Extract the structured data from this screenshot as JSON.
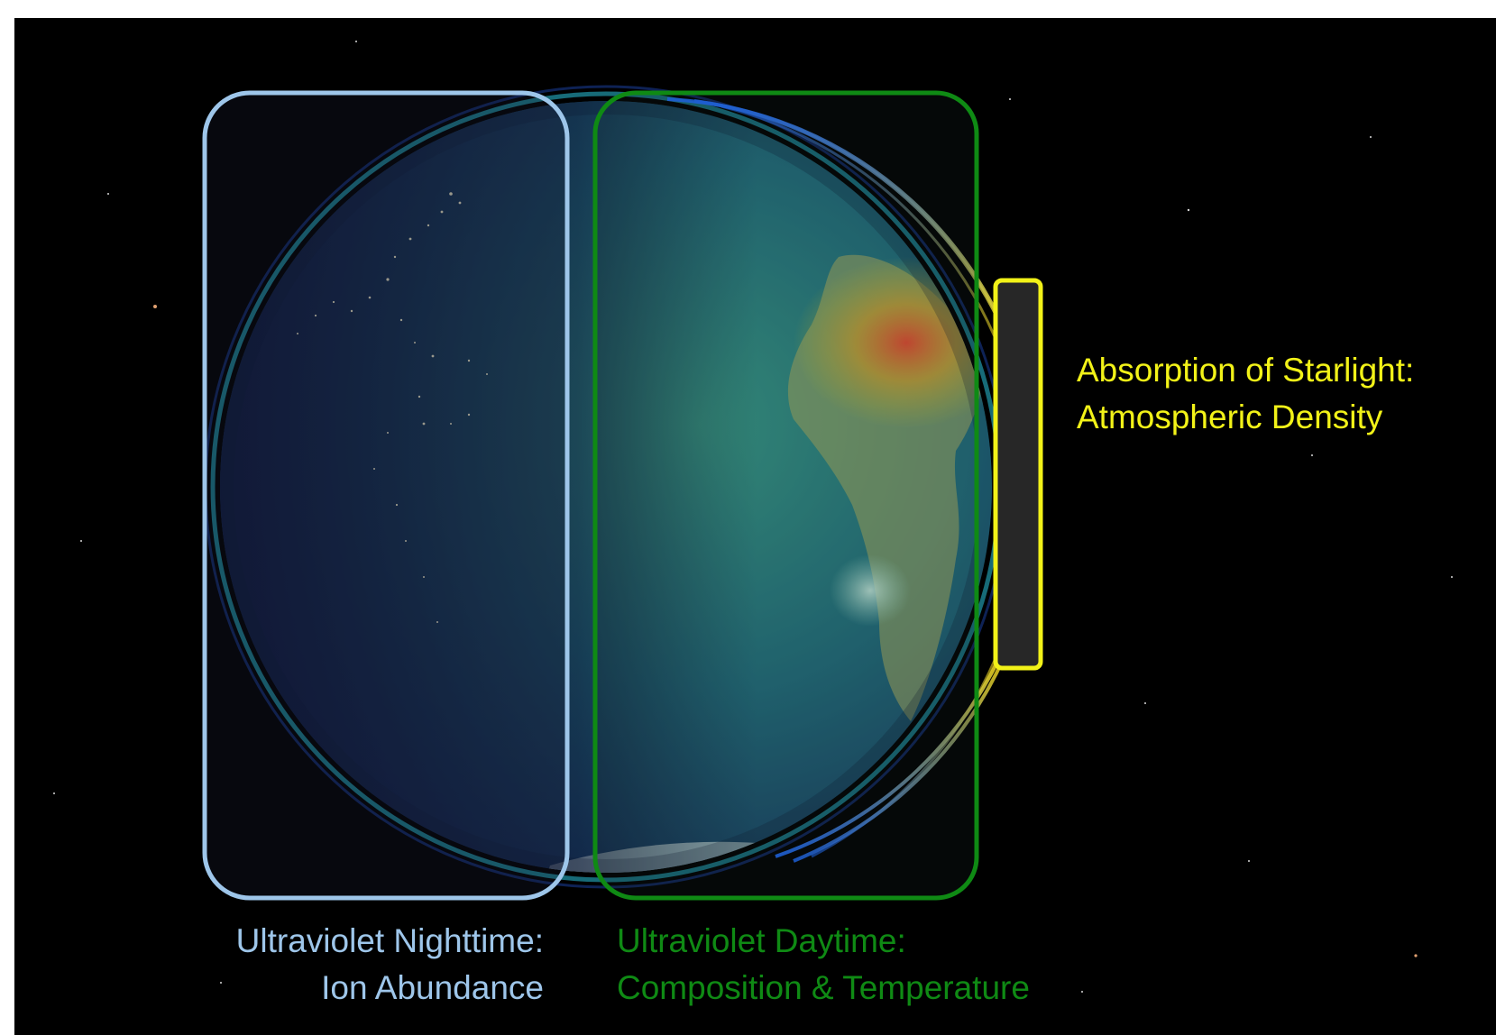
{
  "colors": {
    "background": "#000000",
    "frame": "#ffffff",
    "nighttime": "#9ec6ea",
    "daytime": "#0f8a14",
    "starlight": "#f2f218"
  },
  "regions": {
    "nighttime": {
      "line1": "Ultraviolet Nighttime:",
      "line2": "Ion Abundance"
    },
    "daytime": {
      "line1": "Ultraviolet Daytime:",
      "line2": "Composition & Temperature"
    },
    "starlight": {
      "line1": "Absorption of Starlight:",
      "line2": "Atmospheric Density"
    }
  }
}
